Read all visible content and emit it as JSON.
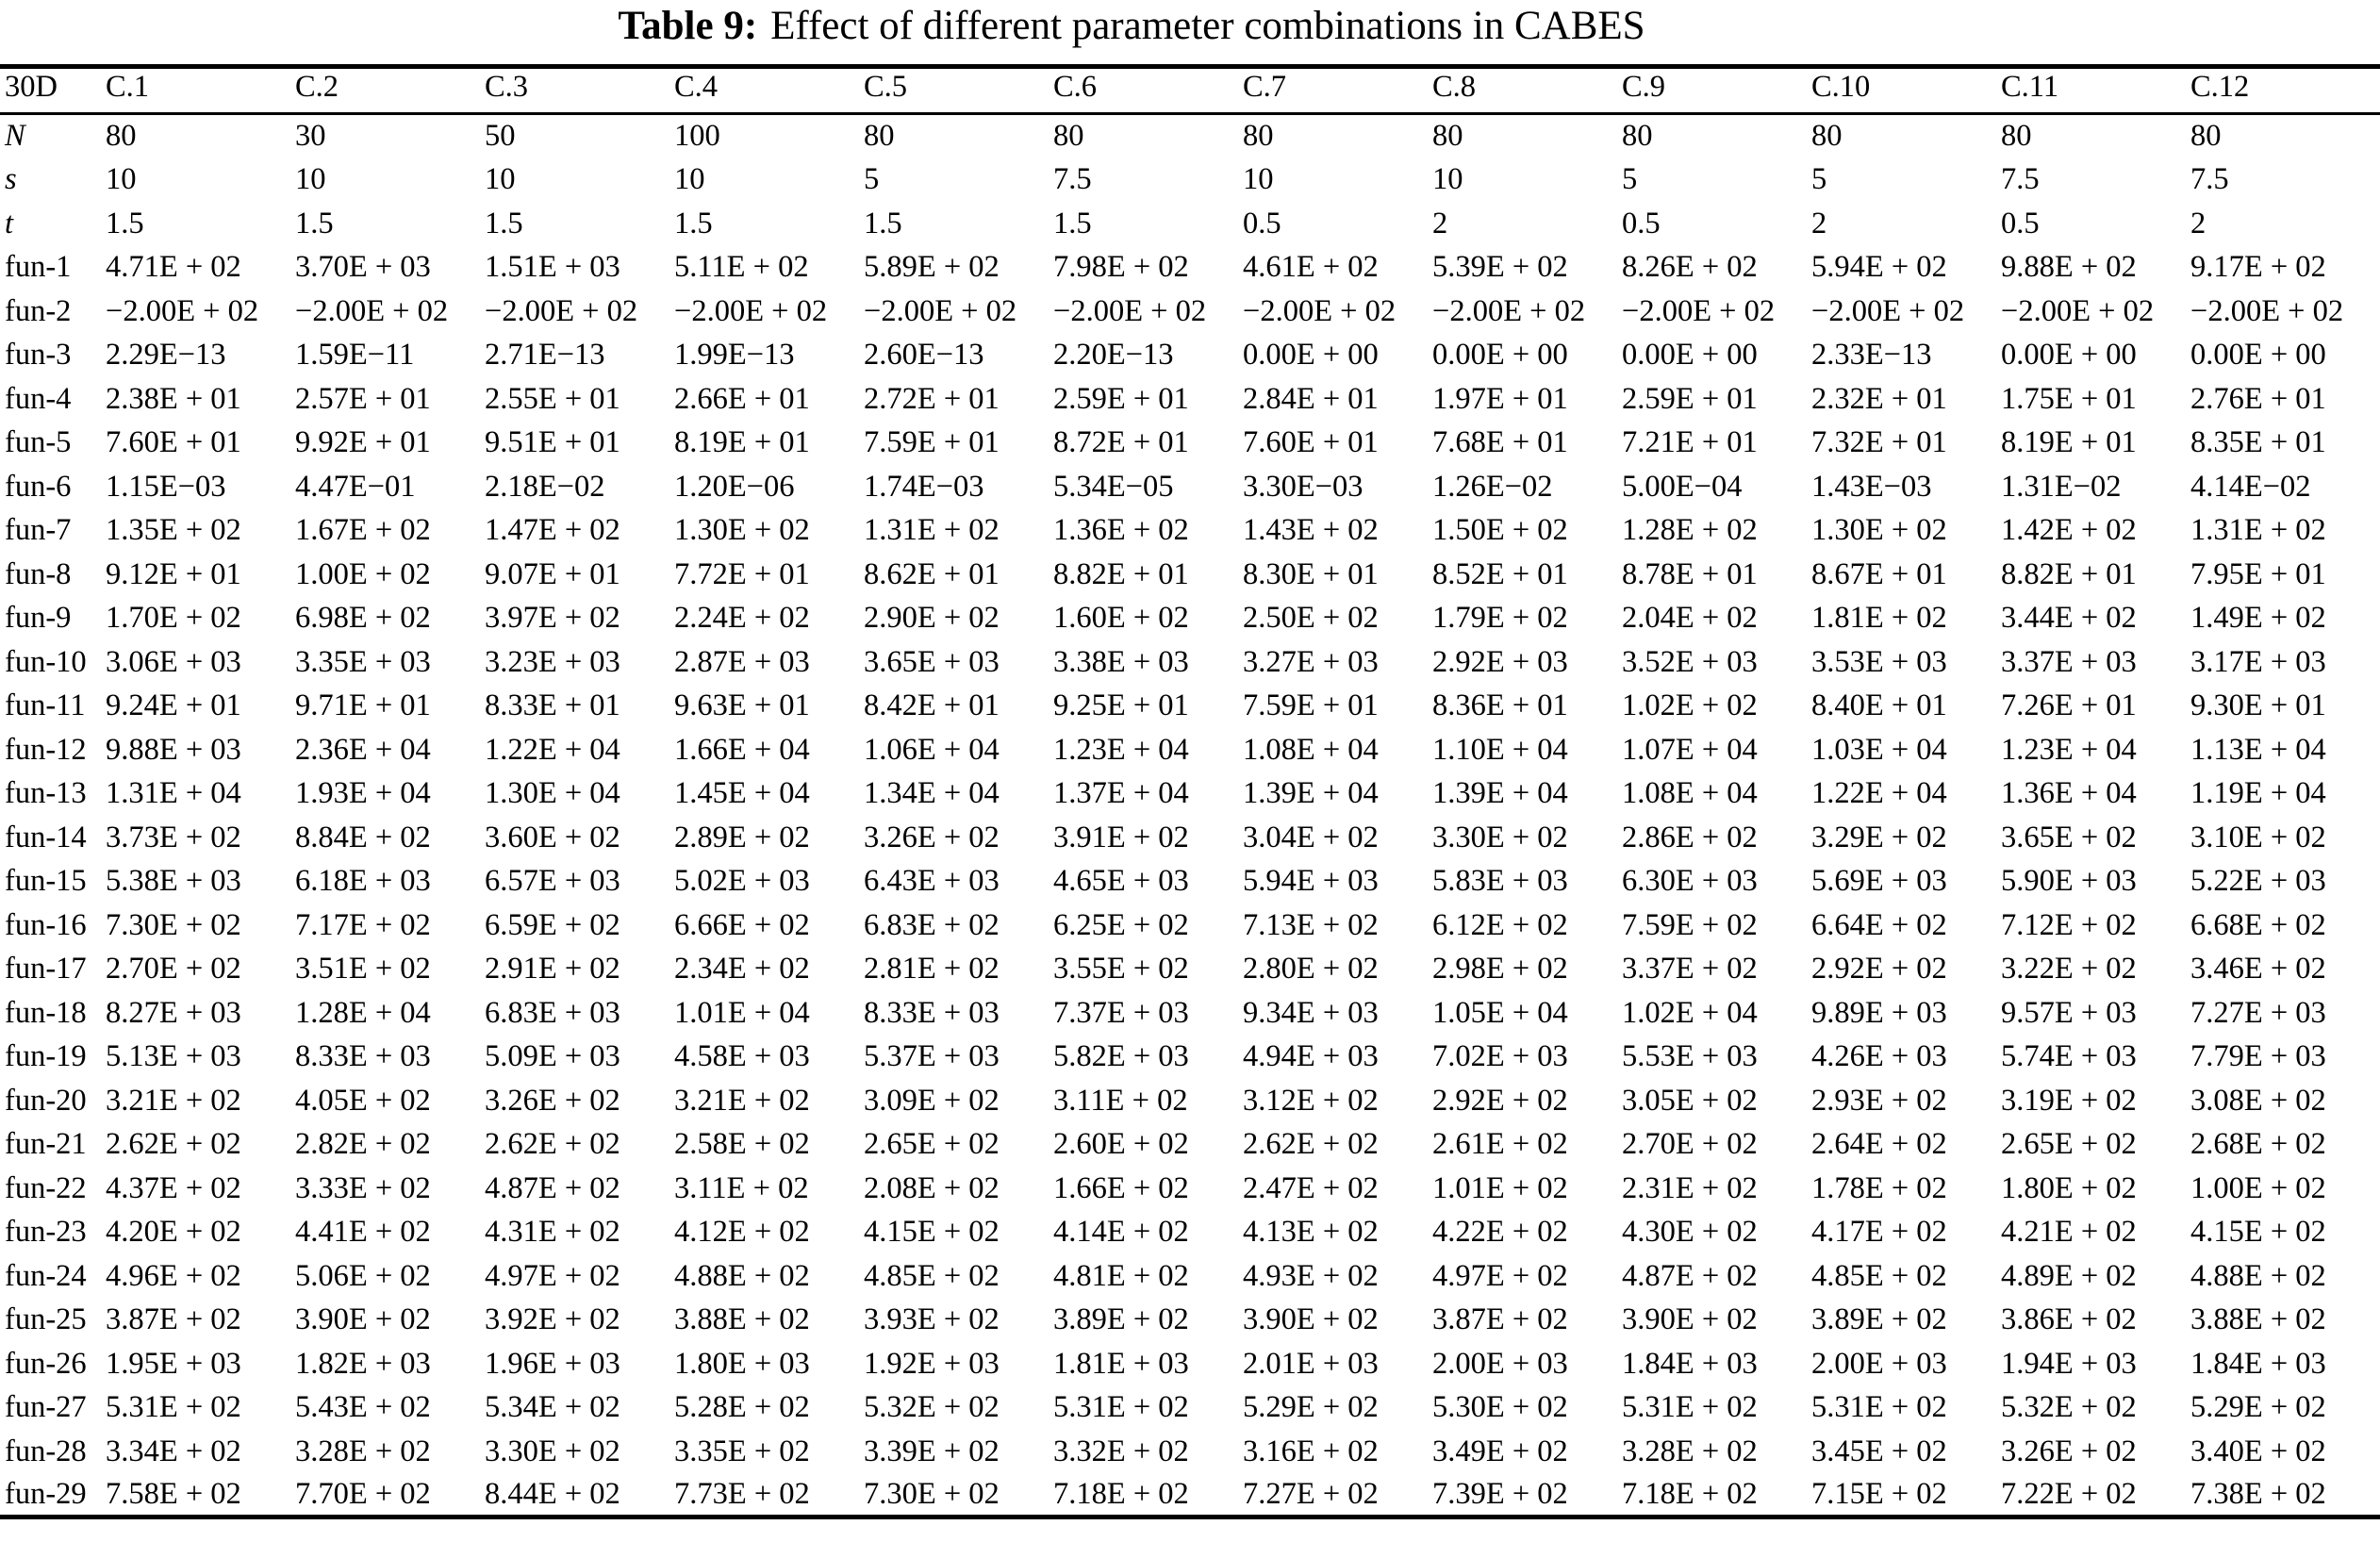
{
  "title": {
    "tag": "Table 9:",
    "caption": "Effect of different parameter combinations in CABES"
  },
  "table": {
    "corner_header": "30D",
    "column_headers": [
      "C.1",
      "C.2",
      "C.3",
      "C.4",
      "C.5",
      "C.6",
      "C.7",
      "C.8",
      "C.9",
      "C.10",
      "C.11",
      "C.12"
    ],
    "rows": [
      {
        "label": "N",
        "italic": true,
        "values": [
          "80",
          "30",
          "50",
          "100",
          "80",
          "80",
          "80",
          "80",
          "80",
          "80",
          "80",
          "80"
        ]
      },
      {
        "label": "s",
        "italic": true,
        "values": [
          "10",
          "10",
          "10",
          "10",
          "5",
          "7.5",
          "10",
          "10",
          "5",
          "5",
          "7.5",
          "7.5"
        ]
      },
      {
        "label": "t",
        "italic": true,
        "values": [
          "1.5",
          "1.5",
          "1.5",
          "1.5",
          "1.5",
          "1.5",
          "0.5",
          "2",
          "0.5",
          "2",
          "0.5",
          "2"
        ]
      },
      {
        "label": "fun-1",
        "values": [
          "4.71E+02",
          "3.70E+03",
          "1.51E+03",
          "5.11E+02",
          "5.89E+02",
          "7.98E+02",
          "4.61E+02",
          "5.39E+02",
          "8.26E+02",
          "5.94E+02",
          "9.88E+02",
          "9.17E+02"
        ]
      },
      {
        "label": "fun-2",
        "values": [
          "-2.00E+02",
          "-2.00E+02",
          "-2.00E+02",
          "-2.00E+02",
          "-2.00E+02",
          "-2.00E+02",
          "-2.00E+02",
          "-2.00E+02",
          "-2.00E+02",
          "-2.00E+02",
          "-2.00E+02",
          "-2.00E+02"
        ]
      },
      {
        "label": "fun-3",
        "values": [
          "2.29E-13",
          "1.59E-11",
          "2.71E-13",
          "1.99E-13",
          "2.60E-13",
          "2.20E-13",
          "0.00E+00",
          "0.00E+00",
          "0.00E+00",
          "2.33E-13",
          "0.00E+00",
          "0.00E+00"
        ]
      },
      {
        "label": "fun-4",
        "values": [
          "2.38E+01",
          "2.57E+01",
          "2.55E+01",
          "2.66E+01",
          "2.72E+01",
          "2.59E+01",
          "2.84E+01",
          "1.97E+01",
          "2.59E+01",
          "2.32E+01",
          "1.75E+01",
          "2.76E+01"
        ]
      },
      {
        "label": "fun-5",
        "values": [
          "7.60E+01",
          "9.92E+01",
          "9.51E+01",
          "8.19E+01",
          "7.59E+01",
          "8.72E+01",
          "7.60E+01",
          "7.68E+01",
          "7.21E+01",
          "7.32E+01",
          "8.19E+01",
          "8.35E+01"
        ]
      },
      {
        "label": "fun-6",
        "values": [
          "1.15E-03",
          "4.47E-01",
          "2.18E-02",
          "1.20E-06",
          "1.74E-03",
          "5.34E-05",
          "3.30E-03",
          "1.26E-02",
          "5.00E-04",
          "1.43E-03",
          "1.31E-02",
          "4.14E-02"
        ]
      },
      {
        "label": "fun-7",
        "values": [
          "1.35E+02",
          "1.67E+02",
          "1.47E+02",
          "1.30E+02",
          "1.31E+02",
          "1.36E+02",
          "1.43E+02",
          "1.50E+02",
          "1.28E+02",
          "1.30E+02",
          "1.42E+02",
          "1.31E+02"
        ]
      },
      {
        "label": "fun-8",
        "values": [
          "9.12E+01",
          "1.00E+02",
          "9.07E+01",
          "7.72E+01",
          "8.62E+01",
          "8.82E+01",
          "8.30E+01",
          "8.52E+01",
          "8.78E+01",
          "8.67E+01",
          "8.82E+01",
          "7.95E+01"
        ]
      },
      {
        "label": "fun-9",
        "values": [
          "1.70E+02",
          "6.98E+02",
          "3.97E+02",
          "2.24E+02",
          "2.90E+02",
          "1.60E+02",
          "2.50E+02",
          "1.79E+02",
          "2.04E+02",
          "1.81E+02",
          "3.44E+02",
          "1.49E+02"
        ]
      },
      {
        "label": "fun-10",
        "values": [
          "3.06E+03",
          "3.35E+03",
          "3.23E+03",
          "2.87E+03",
          "3.65E+03",
          "3.38E+03",
          "3.27E+03",
          "2.92E+03",
          "3.52E+03",
          "3.53E+03",
          "3.37E+03",
          "3.17E+03"
        ]
      },
      {
        "label": "fun-11",
        "values": [
          "9.24E+01",
          "9.71E+01",
          "8.33E+01",
          "9.63E+01",
          "8.42E+01",
          "9.25E+01",
          "7.59E+01",
          "8.36E+01",
          "1.02E+02",
          "8.40E+01",
          "7.26E+01",
          "9.30E+01"
        ]
      },
      {
        "label": "fun-12",
        "values": [
          "9.88E+03",
          "2.36E+04",
          "1.22E+04",
          "1.66E+04",
          "1.06E+04",
          "1.23E+04",
          "1.08E+04",
          "1.10E+04",
          "1.07E+04",
          "1.03E+04",
          "1.23E+04",
          "1.13E+04"
        ]
      },
      {
        "label": "fun-13",
        "values": [
          "1.31E+04",
          "1.93E+04",
          "1.30E+04",
          "1.45E+04",
          "1.34E+04",
          "1.37E+04",
          "1.39E+04",
          "1.39E+04",
          "1.08E+04",
          "1.22E+04",
          "1.36E+04",
          "1.19E+04"
        ]
      },
      {
        "label": "fun-14",
        "values": [
          "3.73E+02",
          "8.84E+02",
          "3.60E+02",
          "2.89E+02",
          "3.26E+02",
          "3.91E+02",
          "3.04E+02",
          "3.30E+02",
          "2.86E+02",
          "3.29E+02",
          "3.65E+02",
          "3.10E+02"
        ]
      },
      {
        "label": "fun-15",
        "values": [
          "5.38E+03",
          "6.18E+03",
          "6.57E+03",
          "5.02E+03",
          "6.43E+03",
          "4.65E+03",
          "5.94E+03",
          "5.83E+03",
          "6.30E+03",
          "5.69E+03",
          "5.90E+03",
          "5.22E+03"
        ]
      },
      {
        "label": "fun-16",
        "values": [
          "7.30E+02",
          "7.17E+02",
          "6.59E+02",
          "6.66E+02",
          "6.83E+02",
          "6.25E+02",
          "7.13E+02",
          "6.12E+02",
          "7.59E+02",
          "6.64E+02",
          "7.12E+02",
          "6.68E+02"
        ]
      },
      {
        "label": "fun-17",
        "values": [
          "2.70E+02",
          "3.51E+02",
          "2.91E+02",
          "2.34E+02",
          "2.81E+02",
          "3.55E+02",
          "2.80E+02",
          "2.98E+02",
          "3.37E+02",
          "2.92E+02",
          "3.22E+02",
          "3.46E+02"
        ]
      },
      {
        "label": "fun-18",
        "values": [
          "8.27E+03",
          "1.28E+04",
          "6.83E+03",
          "1.01E+04",
          "8.33E+03",
          "7.37E+03",
          "9.34E+03",
          "1.05E+04",
          "1.02E+04",
          "9.89E+03",
          "9.57E+03",
          "7.27E+03"
        ]
      },
      {
        "label": "fun-19",
        "values": [
          "5.13E+03",
          "8.33E+03",
          "5.09E+03",
          "4.58E+03",
          "5.37E+03",
          "5.82E+03",
          "4.94E+03",
          "7.02E+03",
          "5.53E+03",
          "4.26E+03",
          "5.74E+03",
          "7.79E+03"
        ]
      },
      {
        "label": "fun-20",
        "values": [
          "3.21E+02",
          "4.05E+02",
          "3.26E+02",
          "3.21E+02",
          "3.09E+02",
          "3.11E+02",
          "3.12E+02",
          "2.92E+02",
          "3.05E+02",
          "2.93E+02",
          "3.19E+02",
          "3.08E+02"
        ]
      },
      {
        "label": "fun-21",
        "values": [
          "2.62E+02",
          "2.82E+02",
          "2.62E+02",
          "2.58E+02",
          "2.65E+02",
          "2.60E+02",
          "2.62E+02",
          "2.61E+02",
          "2.70E+02",
          "2.64E+02",
          "2.65E+02",
          "2.68E+02"
        ]
      },
      {
        "label": "fun-22",
        "values": [
          "4.37E+02",
          "3.33E+02",
          "4.87E+02",
          "3.11E+02",
          "2.08E+02",
          "1.66E+02",
          "2.47E+02",
          "1.01E+02",
          "2.31E+02",
          "1.78E+02",
          "1.80E+02",
          "1.00E+02"
        ]
      },
      {
        "label": "fun-23",
        "values": [
          "4.20E+02",
          "4.41E+02",
          "4.31E+02",
          "4.12E+02",
          "4.15E+02",
          "4.14E+02",
          "4.13E+02",
          "4.22E+02",
          "4.30E+02",
          "4.17E+02",
          "4.21E+02",
          "4.15E+02"
        ]
      },
      {
        "label": "fun-24",
        "values": [
          "4.96E+02",
          "5.06E+02",
          "4.97E+02",
          "4.88E+02",
          "4.85E+02",
          "4.81E+02",
          "4.93E+02",
          "4.97E+02",
          "4.87E+02",
          "4.85E+02",
          "4.89E+02",
          "4.88E+02"
        ]
      },
      {
        "label": "fun-25",
        "values": [
          "3.87E+02",
          "3.90E+02",
          "3.92E+02",
          "3.88E+02",
          "3.93E+02",
          "3.89E+02",
          "3.90E+02",
          "3.87E+02",
          "3.90E+02",
          "3.89E+02",
          "3.86E+02",
          "3.88E+02"
        ]
      },
      {
        "label": "fun-26",
        "values": [
          "1.95E+03",
          "1.82E+03",
          "1.96E+03",
          "1.80E+03",
          "1.92E+03",
          "1.81E+03",
          "2.01E+03",
          "2.00E+03",
          "1.84E+03",
          "2.00E+03",
          "1.94E+03",
          "1.84E+03"
        ]
      },
      {
        "label": "fun-27",
        "values": [
          "5.31E+02",
          "5.43E+02",
          "5.34E+02",
          "5.28E+02",
          "5.32E+02",
          "5.31E+02",
          "5.29E+02",
          "5.30E+02",
          "5.31E+02",
          "5.31E+02",
          "5.32E+02",
          "5.29E+02"
        ]
      },
      {
        "label": "fun-28",
        "values": [
          "3.34E+02",
          "3.28E+02",
          "3.30E+02",
          "3.35E+02",
          "3.39E+02",
          "3.32E+02",
          "3.16E+02",
          "3.49E+02",
          "3.28E+02",
          "3.45E+02",
          "3.26E+02",
          "3.40E+02"
        ]
      },
      {
        "label": "fun-29",
        "values": [
          "7.58E+02",
          "7.70E+02",
          "8.44E+02",
          "7.73E+02",
          "7.30E+02",
          "7.18E+02",
          "7.27E+02",
          "7.39E+02",
          "7.18E+02",
          "7.15E+02",
          "7.22E+02",
          "7.38E+02"
        ]
      }
    ]
  }
}
